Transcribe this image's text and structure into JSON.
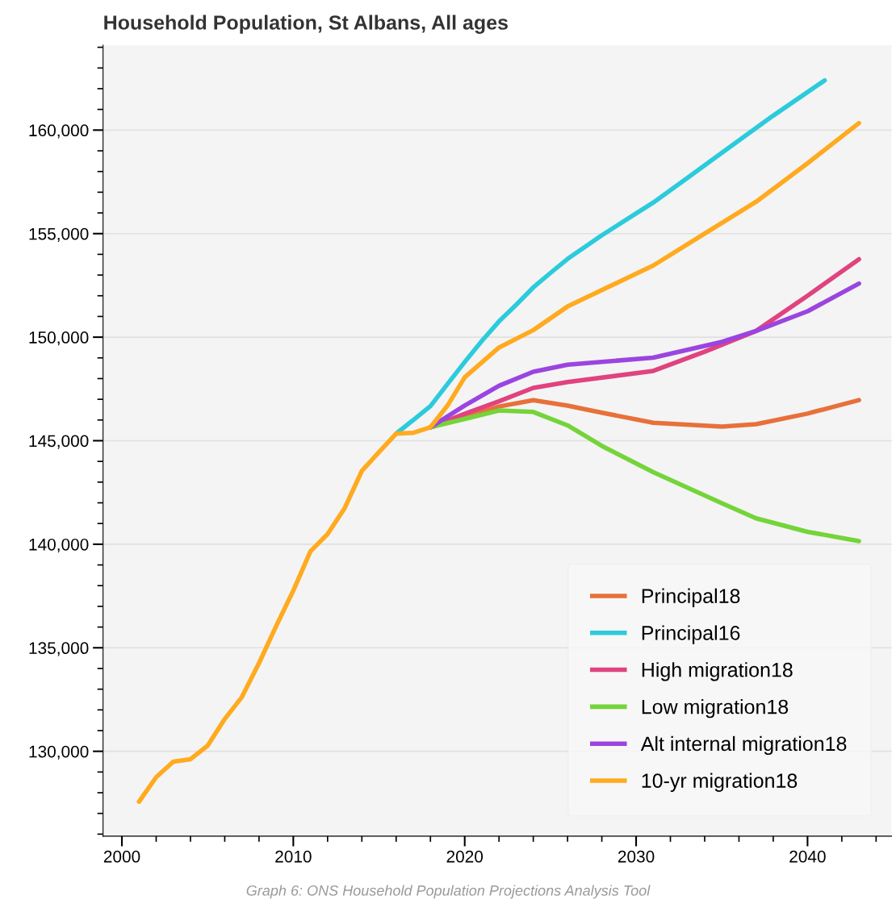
{
  "chart_data": {
    "type": "line",
    "title": "Household Population, St Albans, All ages",
    "xlim": [
      1998.9,
      2044.9
    ],
    "ylim": [
      125900,
      164100
    ],
    "xticks": [
      2000,
      {
        "value": 2002,
        "label": null
      },
      {
        "value": 2004,
        "label": null
      },
      {
        "value": 2006,
        "label": null
      },
      {
        "value": 2008,
        "label": null
      },
      2010,
      {
        "value": 2012,
        "label": null
      },
      {
        "value": 2014,
        "label": null
      },
      {
        "value": 2016,
        "label": null
      },
      {
        "value": 2018,
        "label": null
      },
      2020,
      {
        "value": 2022,
        "label": null
      },
      {
        "value": 2024,
        "label": null
      },
      {
        "value": 2026,
        "label": null
      },
      {
        "value": 2028,
        "label": null
      },
      2030,
      {
        "value": 2032,
        "label": null
      },
      {
        "value": 2034,
        "label": null
      },
      {
        "value": 2036,
        "label": null
      },
      {
        "value": 2038,
        "label": null
      },
      2040,
      {
        "value": 2042,
        "label": null
      },
      {
        "value": 2044,
        "label": null
      }
    ],
    "yticks": [
      {
        "value": 126000,
        "label": null
      },
      {
        "value": 127000,
        "label": null
      },
      {
        "value": 128000,
        "label": null
      },
      {
        "value": 129000,
        "label": null
      },
      {
        "value": 130000,
        "label": "130,000"
      },
      {
        "value": 131000,
        "label": null
      },
      {
        "value": 132000,
        "label": null
      },
      {
        "value": 133000,
        "label": null
      },
      {
        "value": 134000,
        "label": null
      },
      {
        "value": 135000,
        "label": "135,000"
      },
      {
        "value": 136000,
        "label": null
      },
      {
        "value": 137000,
        "label": null
      },
      {
        "value": 138000,
        "label": null
      },
      {
        "value": 139000,
        "label": null
      },
      {
        "value": 140000,
        "label": "140,000"
      },
      {
        "value": 141000,
        "label": null
      },
      {
        "value": 142000,
        "label": null
      },
      {
        "value": 143000,
        "label": null
      },
      {
        "value": 144000,
        "label": null
      },
      {
        "value": 145000,
        "label": "145,000"
      },
      {
        "value": 146000,
        "label": null
      },
      {
        "value": 147000,
        "label": null
      },
      {
        "value": 148000,
        "label": null
      },
      {
        "value": 149000,
        "label": null
      },
      {
        "value": 150000,
        "label": "150,000"
      },
      {
        "value": 151000,
        "label": null
      },
      {
        "value": 152000,
        "label": null
      },
      {
        "value": 153000,
        "label": null
      },
      {
        "value": 154000,
        "label": null
      },
      {
        "value": 155000,
        "label": "155,000"
      },
      {
        "value": 156000,
        "label": null
      },
      {
        "value": 157000,
        "label": null
      },
      {
        "value": 158000,
        "label": null
      },
      {
        "value": 159000,
        "label": null
      },
      {
        "value": 160000,
        "label": "160,000"
      },
      {
        "value": 161000,
        "label": null
      },
      {
        "value": 162000,
        "label": null
      },
      {
        "value": 163000,
        "label": null
      },
      {
        "value": 164000,
        "label": null
      }
    ],
    "grid": "y",
    "legend": "bottom right",
    "line_style": "solid",
    "marker": "none",
    "annotations": [
      "Graph 6: ONS Household Population Projections Analysis Tool"
    ],
    "series": [
      {
        "name": "Principal18",
        "color": "#e8703a",
        "x": [
          2018,
          2020,
          2022,
          2024,
          2026,
          2028,
          2031,
          2035,
          2037,
          2040,
          2043
        ],
        "values": [
          145650,
          146150,
          146650,
          146960,
          146690,
          146350,
          145870,
          145680,
          145800,
          146310,
          146960
        ]
      },
      {
        "name": "Principal16",
        "color": "#2ccbdc",
        "x": [
          2016,
          2017,
          2018,
          2019,
          2020,
          2021,
          2022,
          2023,
          2024,
          2025,
          2026,
          2028,
          2030,
          2031,
          2033,
          2035,
          2038,
          2041
        ],
        "values": [
          145340,
          146000,
          146670,
          147740,
          148800,
          149820,
          150760,
          151560,
          152400,
          153100,
          153780,
          154920,
          155980,
          156500,
          157700,
          158900,
          160700,
          162400
        ]
      },
      {
        "name": "High migration18",
        "color": "#e0437f",
        "x": [
          2018,
          2020,
          2022,
          2024,
          2026,
          2031,
          2034,
          2037,
          2040,
          2043
        ],
        "values": [
          145650,
          146300,
          146900,
          147550,
          147830,
          148370,
          149300,
          150300,
          152000,
          153760
        ]
      },
      {
        "name": "Low migration18",
        "color": "#74d43a",
        "x": [
          2018,
          2020,
          2022,
          2024,
          2026,
          2028,
          2031,
          2035,
          2037,
          2040,
          2043
        ],
        "values": [
          145650,
          146050,
          146460,
          146390,
          145740,
          144750,
          143480,
          141980,
          141250,
          140600,
          140150
        ]
      },
      {
        "name": "Alt internal migration18",
        "color": "#9b45e0",
        "x": [
          2018,
          2020,
          2022,
          2024,
          2026,
          2031,
          2035,
          2037,
          2040,
          2043
        ],
        "values": [
          145650,
          146700,
          147650,
          148330,
          148670,
          149010,
          149770,
          150300,
          151250,
          152590
        ]
      },
      {
        "name": "10-yr migration18",
        "color": "#ffaa1f",
        "x": [
          2001,
          2002,
          2003,
          2004,
          2005,
          2006,
          2007,
          2008,
          2009,
          2010,
          2011,
          2012,
          2013,
          2014,
          2015,
          2016,
          2017,
          2018,
          2019,
          2020,
          2022,
          2024,
          2026,
          2031,
          2034,
          2037,
          2040,
          2043
        ],
        "values": [
          127570,
          128750,
          129500,
          129620,
          130270,
          131560,
          132620,
          134260,
          136050,
          137760,
          139660,
          140490,
          141750,
          143540,
          144450,
          145340,
          145380,
          145650,
          146700,
          148060,
          149500,
          150340,
          151480,
          153460,
          155000,
          156540,
          158400,
          160340
        ]
      }
    ]
  }
}
